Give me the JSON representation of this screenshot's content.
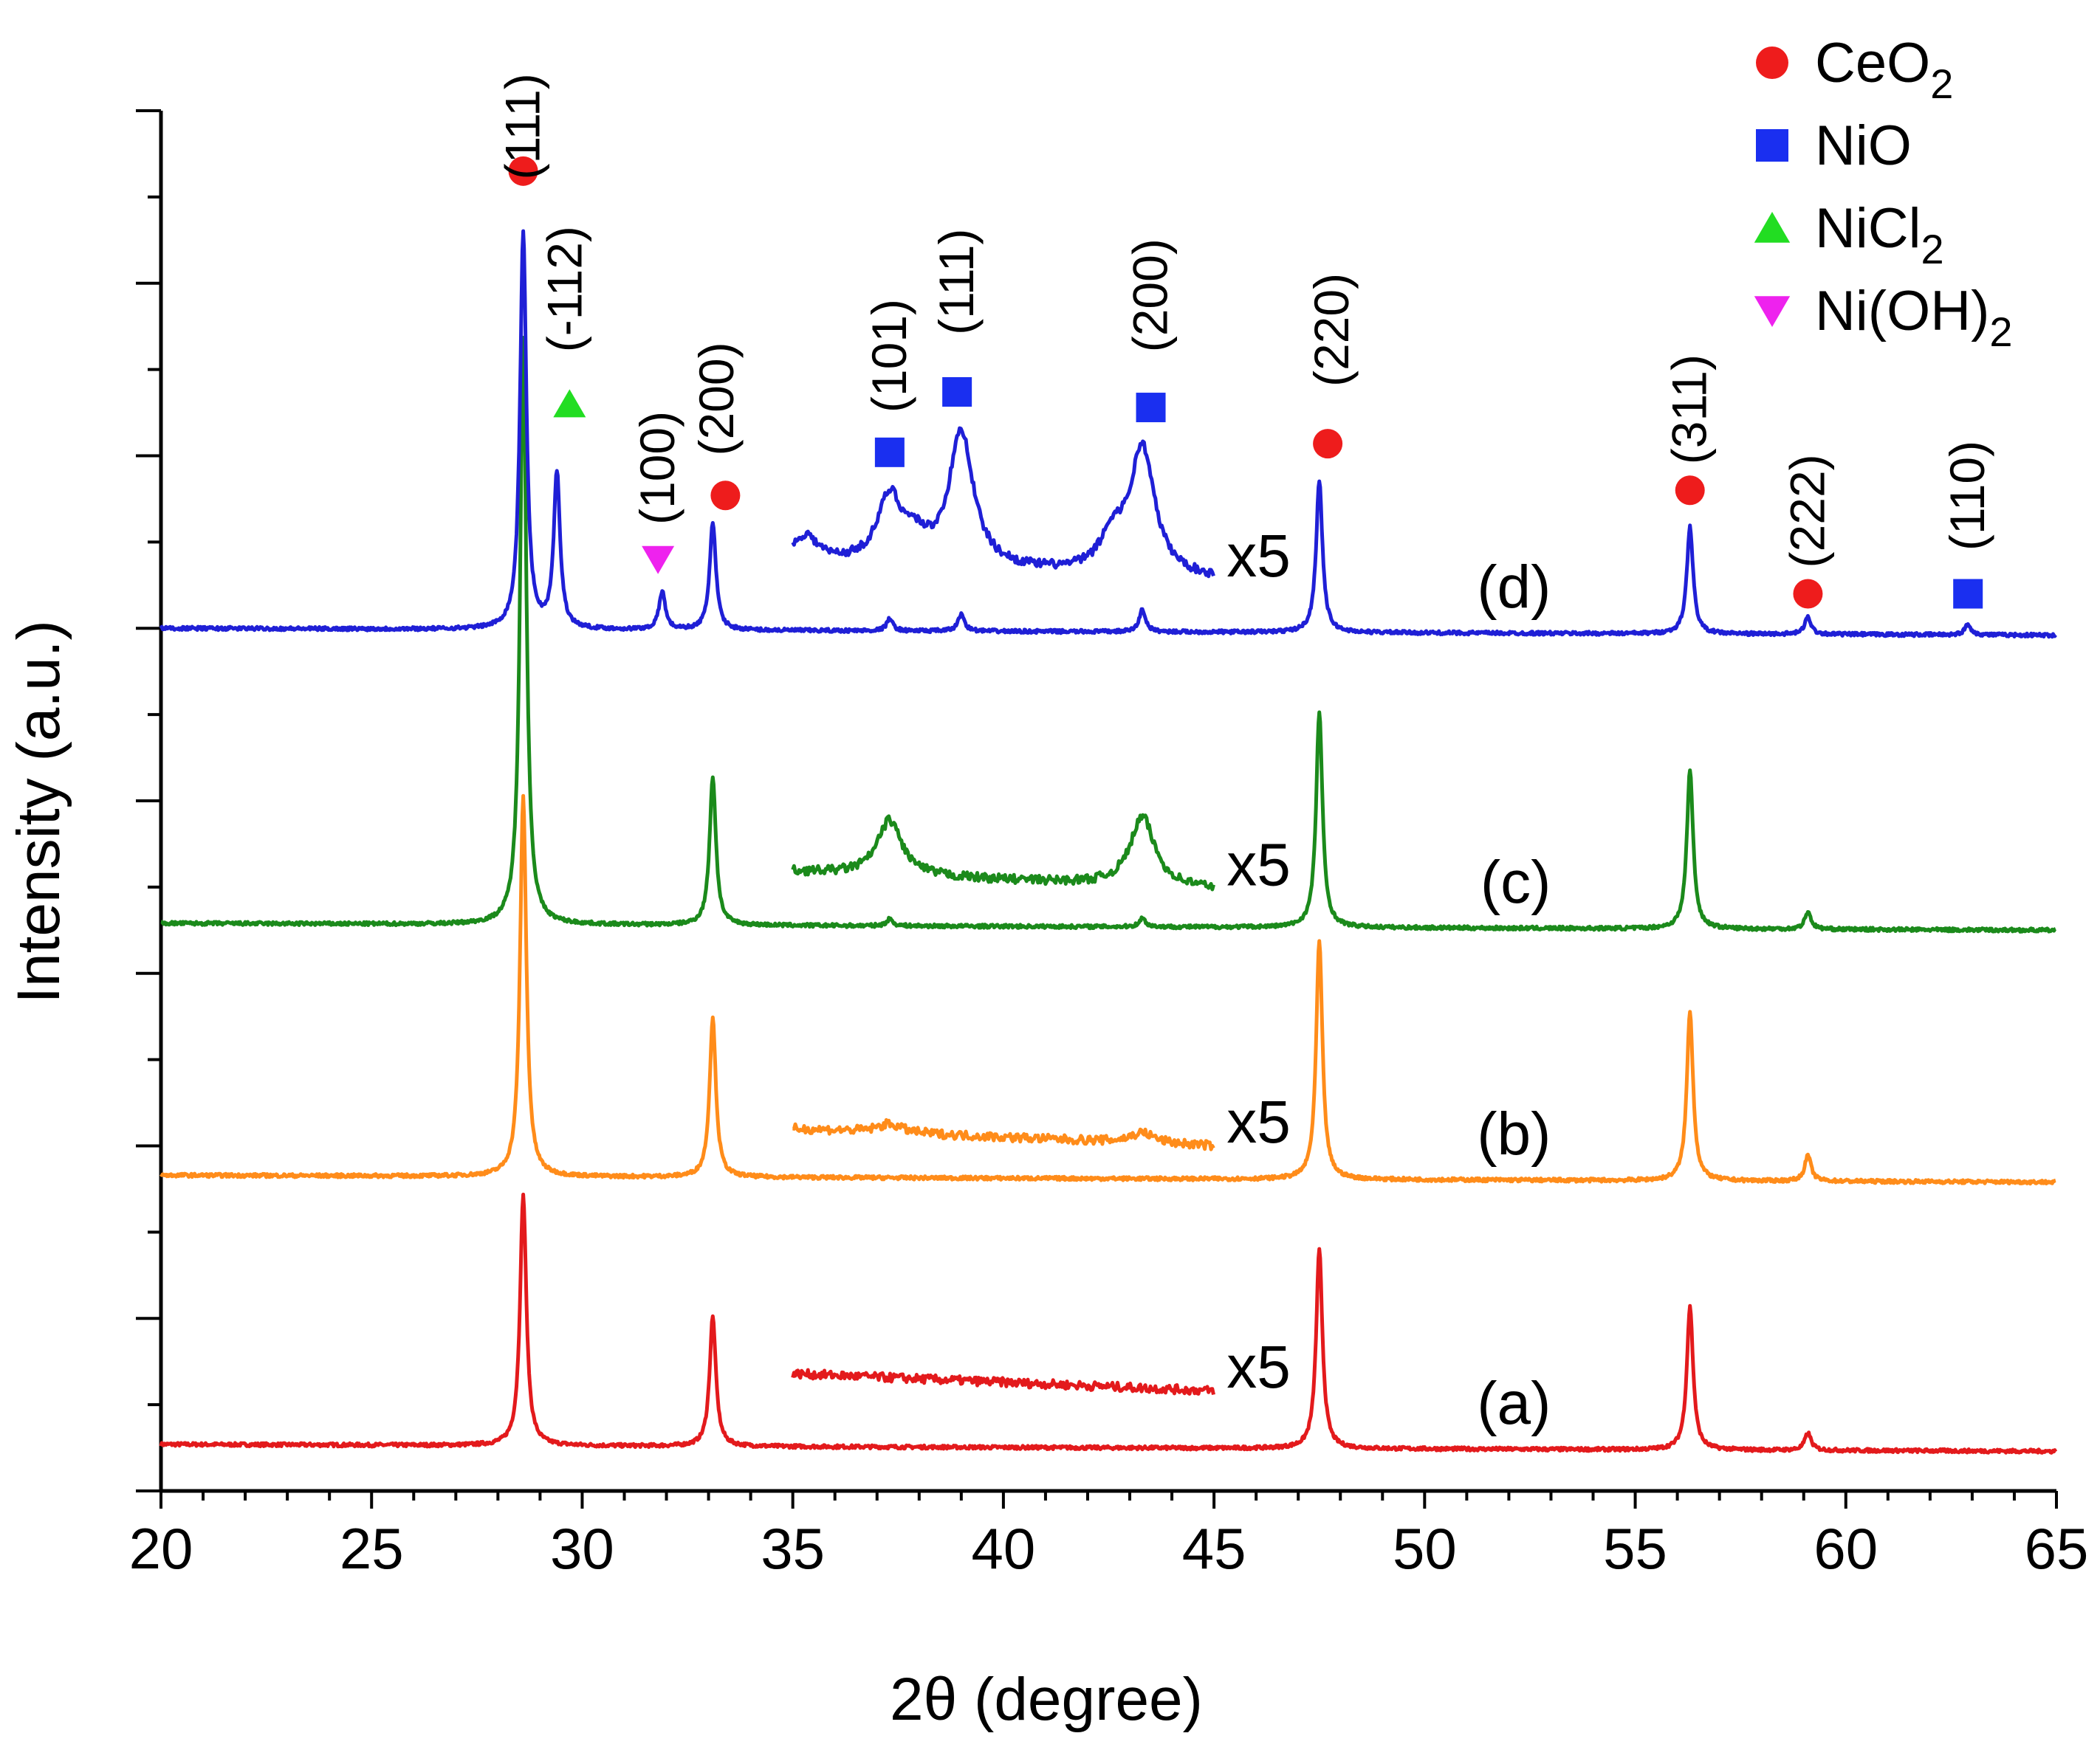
{
  "chart_data": {
    "type": "line",
    "title": "",
    "xlabel": "2θ (degree)",
    "ylabel": "Intensity (a.u.)",
    "xlim": [
      20,
      65
    ],
    "x_ticks": [
      20,
      25,
      30,
      35,
      40,
      45,
      50,
      55,
      60,
      65
    ],
    "x_tick_labels": [
      "20",
      "25",
      "30",
      "35",
      "40",
      "45",
      "50",
      "55",
      "60",
      "65"
    ],
    "ylim": [
      0,
      8
    ],
    "y_ticks": [
      0,
      1,
      2,
      3,
      4,
      5,
      6,
      7,
      8
    ],
    "y_tick_labels_visible": false,
    "magnification_label": "x5",
    "inset_range": [
      35,
      45
    ],
    "series": [
      {
        "name": "(a)",
        "color": "#e31a1c",
        "baseline": 0.27,
        "inset_baseline": 0.68,
        "peaks": [
          {
            "x": 28.6,
            "h": 1.45
          },
          {
            "x": 33.1,
            "h": 0.75
          },
          {
            "x": 47.5,
            "h": 1.15
          },
          {
            "x": 56.3,
            "h": 0.83
          },
          {
            "x": 59.1,
            "h": 0.1
          }
        ],
        "inset_peaks": []
      },
      {
        "name": "(b)",
        "color": "#ff8c1a",
        "baseline": 1.83,
        "inset_baseline": 2.1,
        "peaks": [
          {
            "x": 28.6,
            "h": 2.2
          },
          {
            "x": 33.1,
            "h": 0.92
          },
          {
            "x": 47.5,
            "h": 1.38
          },
          {
            "x": 56.3,
            "h": 0.98
          },
          {
            "x": 59.1,
            "h": 0.15
          }
        ],
        "inset_peaks": [
          {
            "x": 37.3,
            "h": 0.05
          },
          {
            "x": 43.3,
            "h": 0.06
          }
        ]
      },
      {
        "name": "(c)",
        "color": "#1b8a1b",
        "baseline": 3.29,
        "inset_baseline": 3.59,
        "peaks": [
          {
            "x": 28.6,
            "h": 3.4
          },
          {
            "x": 33.1,
            "h": 0.86
          },
          {
            "x": 47.5,
            "h": 1.25
          },
          {
            "x": 56.3,
            "h": 0.92
          },
          {
            "x": 59.1,
            "h": 0.1
          },
          {
            "x": 37.3,
            "h": 0.04
          },
          {
            "x": 43.3,
            "h": 0.05
          }
        ],
        "inset_peaks": [
          {
            "x": 37.3,
            "h": 0.32
          },
          {
            "x": 43.3,
            "h": 0.4
          }
        ]
      },
      {
        "name": "(d)",
        "color": "#1f1fd6",
        "baseline": 5.0,
        "inset_baseline": 5.38,
        "peaks": [
          {
            "x": 28.6,
            "h": 2.3
          },
          {
            "x": 29.4,
            "h": 0.9
          },
          {
            "x": 31.9,
            "h": 0.22
          },
          {
            "x": 33.1,
            "h": 0.62
          },
          {
            "x": 37.3,
            "h": 0.07
          },
          {
            "x": 39.0,
            "h": 0.1
          },
          {
            "x": 43.3,
            "h": 0.13
          },
          {
            "x": 47.5,
            "h": 0.88
          },
          {
            "x": 56.3,
            "h": 0.62
          },
          {
            "x": 59.1,
            "h": 0.1
          },
          {
            "x": 62.9,
            "h": 0.06
          }
        ],
        "inset_peaks": [
          {
            "x": 35.3,
            "h": 0.15
          },
          {
            "x": 37.3,
            "h": 0.38
          },
          {
            "x": 37.9,
            "h": 0.12
          },
          {
            "x": 39.0,
            "h": 0.78
          },
          {
            "x": 42.6,
            "h": 0.2
          },
          {
            "x": 43.3,
            "h": 0.73
          }
        ]
      }
    ],
    "annotations": [
      {
        "text": "(111)",
        "x": 28.6,
        "y": 7.6
      },
      {
        "text": "(-112)",
        "x": 29.6,
        "y": 6.6
      },
      {
        "text": "(100)",
        "x": 31.8,
        "y": 5.6
      },
      {
        "text": "(200)",
        "x": 33.2,
        "y": 6.0
      },
      {
        "text": "(101)",
        "x": 37.3,
        "y": 6.25
      },
      {
        "text": "(111)",
        "x": 38.9,
        "y": 6.7
      },
      {
        "text": "(200)",
        "x": 43.5,
        "y": 6.6
      },
      {
        "text": "(220)",
        "x": 47.8,
        "y": 6.4
      },
      {
        "text": "(311)",
        "x": 56.3,
        "y": 5.95
      },
      {
        "text": "(222)",
        "x": 59.1,
        "y": 5.35
      },
      {
        "text": "(110)",
        "x": 62.9,
        "y": 5.45
      }
    ],
    "markers": [
      {
        "phase": "CeO2",
        "x": 28.6,
        "y": 7.65
      },
      {
        "phase": "NiCl2",
        "x": 29.7,
        "y": 6.3
      },
      {
        "phase": "Ni(OH)2",
        "x": 31.8,
        "y": 5.4
      },
      {
        "phase": "CeO2",
        "x": 33.4,
        "y": 5.77
      },
      {
        "phase": "NiO",
        "x": 37.3,
        "y": 6.02
      },
      {
        "phase": "NiO",
        "x": 38.9,
        "y": 6.37
      },
      {
        "phase": "NiO",
        "x": 43.5,
        "y": 6.28
      },
      {
        "phase": "CeO2",
        "x": 47.7,
        "y": 6.07
      },
      {
        "phase": "CeO2",
        "x": 56.3,
        "y": 5.8
      },
      {
        "phase": "CeO2",
        "x": 59.1,
        "y": 5.2
      },
      {
        "phase": "NiO",
        "x": 62.9,
        "y": 5.2
      }
    ],
    "legend": {
      "position": "top-right",
      "entries": [
        {
          "phase": "CeO2",
          "label": "CeO",
          "sub": "2",
          "shape": "circle",
          "color": "#ee1c1c"
        },
        {
          "phase": "NiO",
          "label": "NiO",
          "sub": "",
          "shape": "square",
          "color": "#1a2ff0"
        },
        {
          "phase": "NiCl2",
          "label": "NiCl",
          "sub": "2",
          "shape": "triangle-up",
          "color": "#22dd22"
        },
        {
          "phase": "Ni(OH)2",
          "label": "Ni(OH)",
          "sub": "2",
          "shape": "triangle-down",
          "color": "#ee22ee"
        }
      ]
    }
  }
}
